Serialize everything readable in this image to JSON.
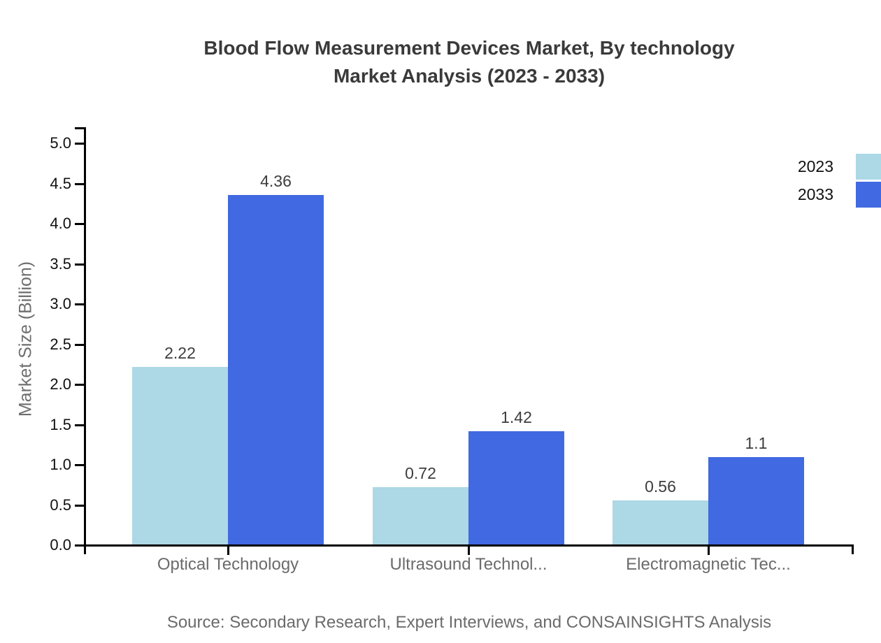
{
  "title": {
    "line1": "Blood Flow Measurement Devices Market, By technology",
    "line2": "Market Analysis (2023 - 2033)"
  },
  "source_note": "Source: Secondary Research, Expert Interviews, and CONSAINSIGHTS Analysis",
  "colors": {
    "background": "#ffffff",
    "axis": "#000000",
    "title_text": "#3a3a3a",
    "tick_label_text": "#111111",
    "category_label_text": "#6b6b6b",
    "value_label_text": "#3d3d3d",
    "ylabel_text": "#6e6e6e",
    "source_text": "#6b6b6b",
    "series_2023": "#add8e6",
    "series_2033": "#4169e1"
  },
  "chart_data": {
    "type": "bar",
    "title": "Blood Flow Measurement Devices Market, By technology Market Analysis (2023 - 2033)",
    "categories": [
      "Optical Technology",
      "Ultrasound Technol...",
      "Electromagnetic Tec..."
    ],
    "series": [
      {
        "name": "2023",
        "color": "#add8e6",
        "values": [
          2.22,
          0.72,
          0.56
        ],
        "value_labels": [
          "2.22",
          "0.72",
          "0.56"
        ]
      },
      {
        "name": "2033",
        "color": "#4169e1",
        "values": [
          4.36,
          1.42,
          1.1
        ],
        "value_labels": [
          "4.36",
          "1.42",
          "1.1"
        ]
      }
    ],
    "xlabel": "",
    "ylabel": "Market Size (Billion)",
    "yticks": [
      0.0,
      0.5,
      1.0,
      1.5,
      2.0,
      2.5,
      3.0,
      3.5,
      4.0,
      4.5,
      5.0
    ],
    "ylim": [
      0,
      5.2
    ],
    "grid": false,
    "legend_position": "top-right",
    "bar_value_labels_shown": true
  }
}
